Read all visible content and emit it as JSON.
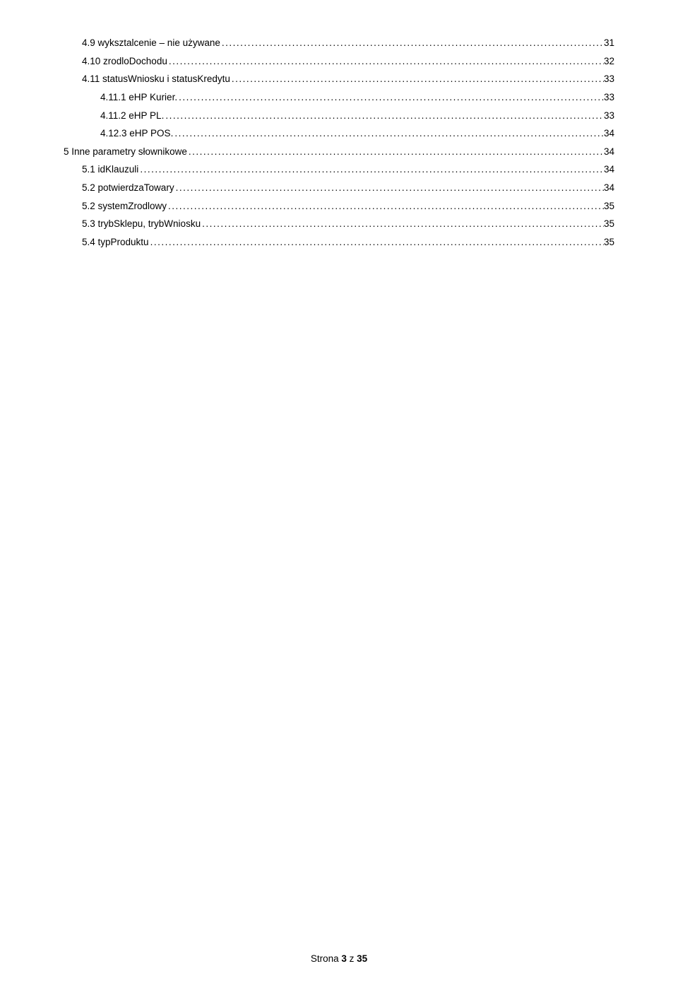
{
  "toc": [
    {
      "indent": 1,
      "label": "4.9 wyksztalcenie – nie używane",
      "page": "31"
    },
    {
      "indent": 1,
      "label": "4.10 zrodloDochodu",
      "page": "32"
    },
    {
      "indent": 1,
      "label": "4.11 statusWniosku i statusKredytu",
      "page": "33"
    },
    {
      "indent": 2,
      "label": "4.11.1 eHP Kurier.",
      "page": "33"
    },
    {
      "indent": 2,
      "label": "4.11.2 eHP PL.",
      "page": "33"
    },
    {
      "indent": 2,
      "label": "4.12.3 eHP POS.",
      "page": "34"
    },
    {
      "indent": 0,
      "label": "5 Inne parametry słownikowe",
      "page": "34"
    },
    {
      "indent": 1,
      "label": "5.1 idKlauzuli",
      "page": "34"
    },
    {
      "indent": 1,
      "label": "5.2 potwierdzaTowary",
      "page": "34"
    },
    {
      "indent": 1,
      "label": "5.2 systemZrodlowy",
      "page": "35"
    },
    {
      "indent": 1,
      "label": "5.3 trybSklepu, trybWniosku",
      "page": "35"
    },
    {
      "indent": 1,
      "label": "5.4 typProduktu",
      "page": "35"
    }
  ],
  "footer": {
    "prefix": "Strona ",
    "current": "3",
    "middle": " z ",
    "total": "35"
  }
}
